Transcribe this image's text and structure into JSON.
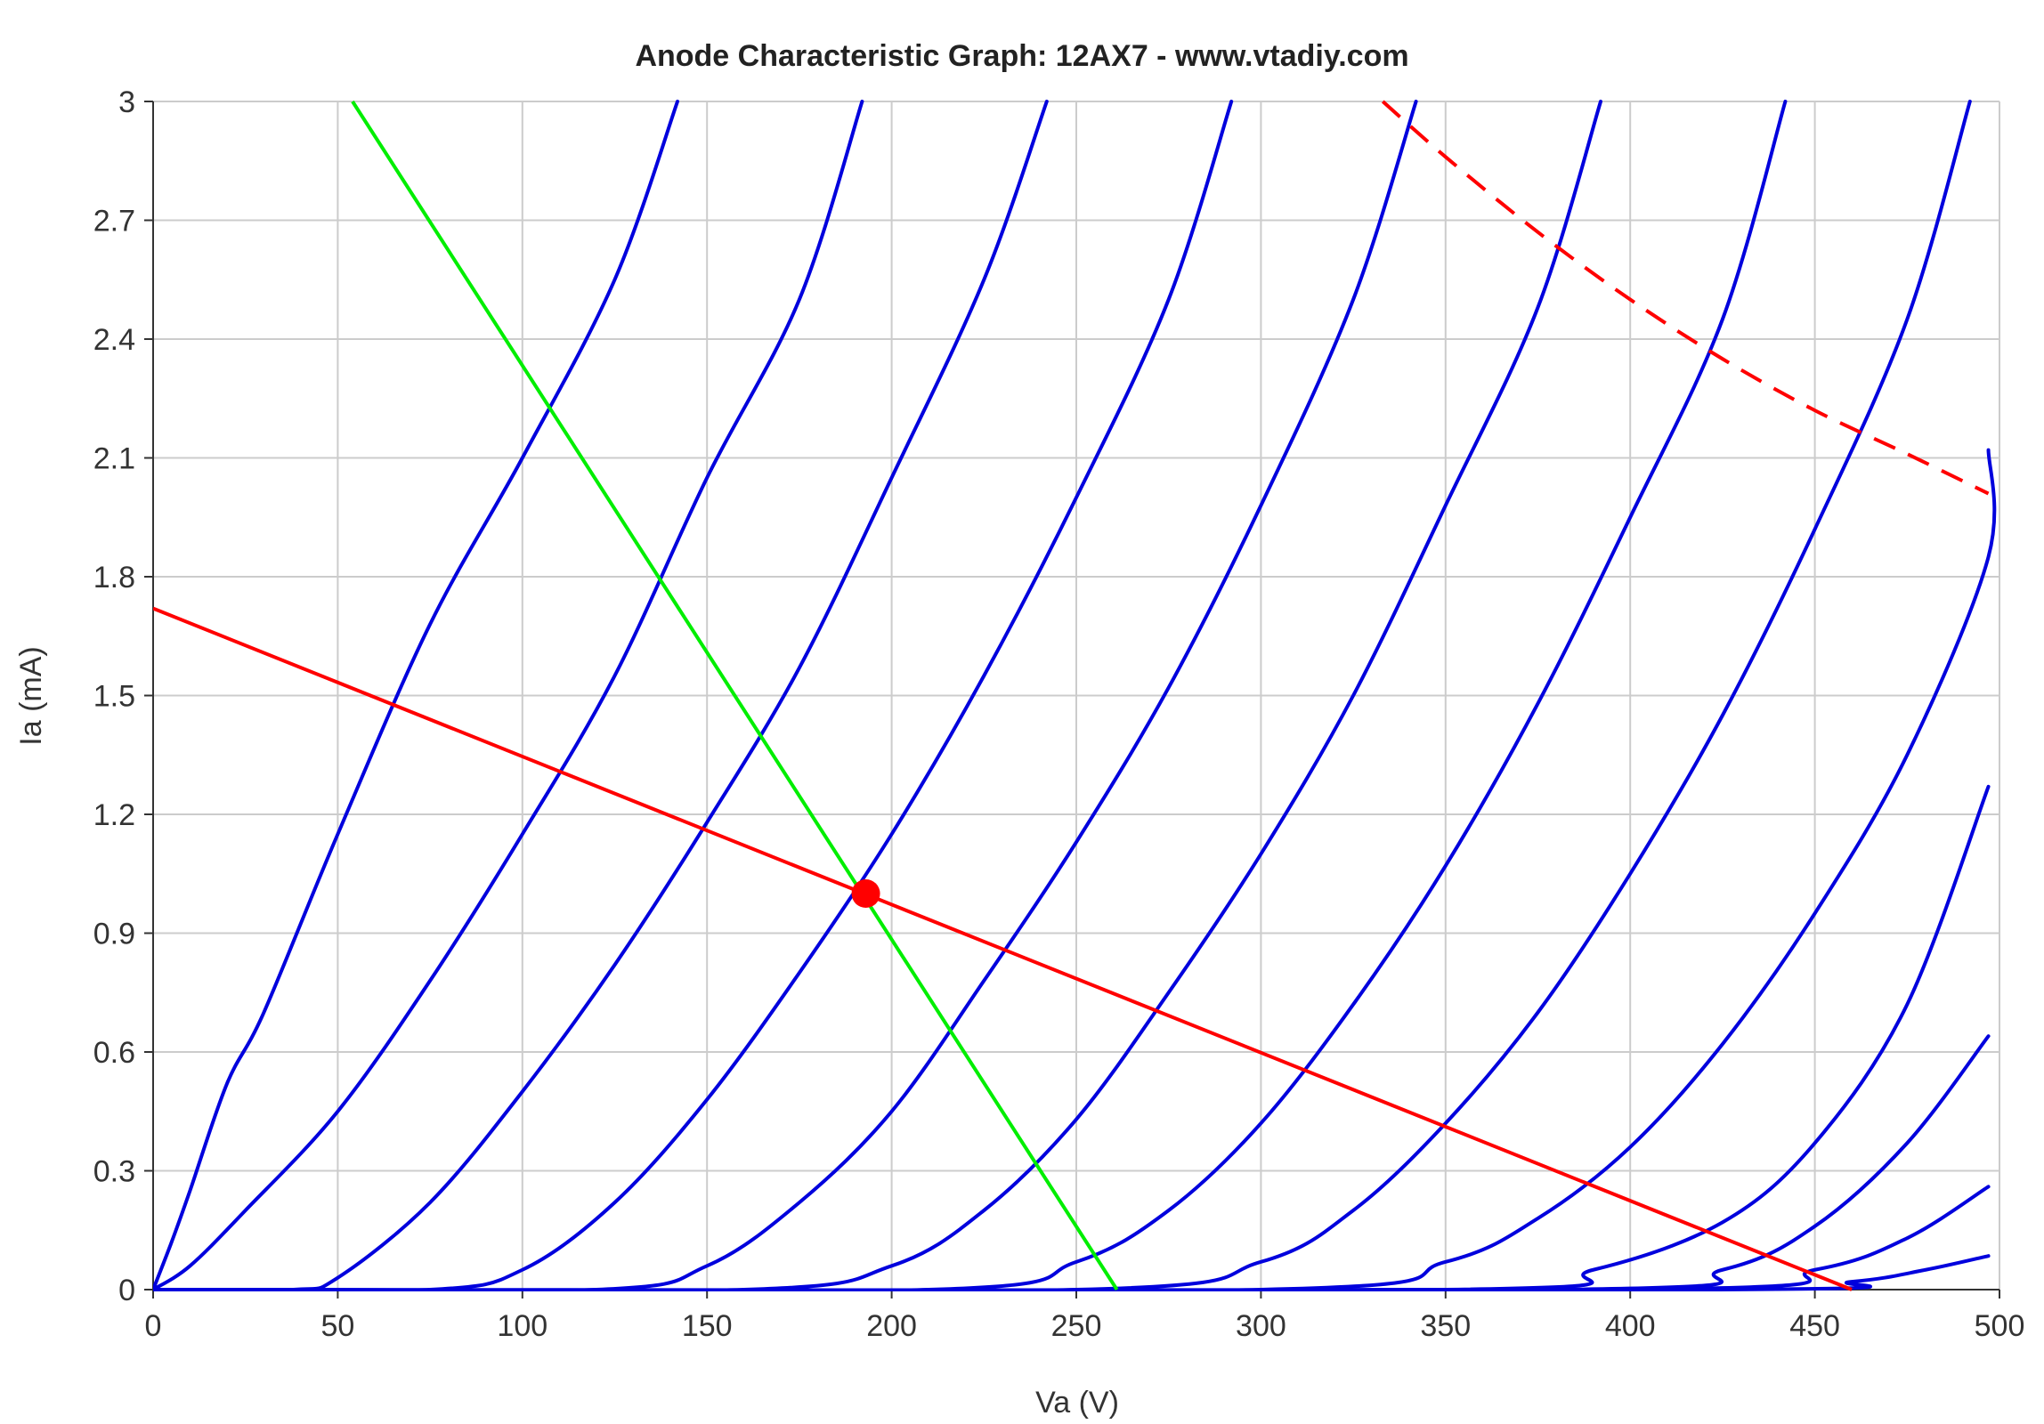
{
  "chart_data": {
    "type": "line",
    "title": "Anode Characteristic Graph: 12AX7 - www.vtadiy.com",
    "xlabel": "Va (V)",
    "ylabel": "Ia (mA)",
    "xlim": [
      0,
      500
    ],
    "ylim": [
      0,
      3
    ],
    "x_ticks": [
      "0",
      "50",
      "100",
      "150",
      "200",
      "250",
      "300",
      "350",
      "400",
      "450",
      "500"
    ],
    "y_ticks": [
      "0",
      "0.3",
      "0.6",
      "0.9",
      "1.2",
      "1.5",
      "1.8",
      "2.1",
      "2.4",
      "2.7",
      "3"
    ],
    "grid": true,
    "colors": {
      "curves": "#0000dd",
      "load_line": "#ff0000",
      "max_dissipation": "#ff0000",
      "cathode_load_line": "#00ee00",
      "operating_point": "#ff0000",
      "grid": "#cccccc",
      "axis": "#333333"
    },
    "series": [
      {
        "points": [
          [
            0,
            0
          ],
          [
            5,
            0.12
          ],
          [
            10,
            0.25
          ],
          [
            20,
            0.52
          ],
          [
            30,
            0.7
          ],
          [
            50,
            1.15
          ],
          [
            75,
            1.68
          ],
          [
            100,
            2.1
          ],
          [
            125,
            2.55
          ],
          [
            142,
            3.0
          ]
        ]
      },
      {
        "points": [
          [
            0,
            0
          ],
          [
            10,
            0.06
          ],
          [
            25,
            0.2
          ],
          [
            50,
            0.45
          ],
          [
            75,
            0.78
          ],
          [
            100,
            1.15
          ],
          [
            125,
            1.55
          ],
          [
            150,
            2.05
          ],
          [
            175,
            2.5
          ],
          [
            192,
            3.0
          ]
        ]
      },
      {
        "points": [
          [
            0,
            0
          ],
          [
            38,
            0.0
          ],
          [
            50,
            0.03
          ],
          [
            75,
            0.22
          ],
          [
            100,
            0.5
          ],
          [
            125,
            0.82
          ],
          [
            150,
            1.18
          ],
          [
            175,
            1.57
          ],
          [
            200,
            2.05
          ],
          [
            225,
            2.55
          ],
          [
            242,
            3.0
          ]
        ]
      },
      {
        "points": [
          [
            0,
            0
          ],
          [
            75,
            0.0
          ],
          [
            100,
            0.05
          ],
          [
            125,
            0.22
          ],
          [
            150,
            0.48
          ],
          [
            175,
            0.8
          ],
          [
            200,
            1.15
          ],
          [
            225,
            1.55
          ],
          [
            250,
            2.0
          ],
          [
            275,
            2.5
          ],
          [
            292,
            3.0
          ]
        ]
      },
      {
        "points": [
          [
            0,
            0
          ],
          [
            120,
            0.0
          ],
          [
            150,
            0.06
          ],
          [
            175,
            0.22
          ],
          [
            200,
            0.45
          ],
          [
            225,
            0.78
          ],
          [
            250,
            1.13
          ],
          [
            275,
            1.52
          ],
          [
            300,
            1.98
          ],
          [
            325,
            2.5
          ],
          [
            342,
            3.0
          ]
        ]
      },
      {
        "points": [
          [
            0,
            0
          ],
          [
            160,
            0.0
          ],
          [
            200,
            0.06
          ],
          [
            225,
            0.2
          ],
          [
            250,
            0.43
          ],
          [
            275,
            0.75
          ],
          [
            300,
            1.1
          ],
          [
            325,
            1.5
          ],
          [
            350,
            1.98
          ],
          [
            375,
            2.48
          ],
          [
            392,
            3.0
          ]
        ]
      },
      {
        "points": [
          [
            0,
            0
          ],
          [
            210,
            0.0
          ],
          [
            250,
            0.07
          ],
          [
            275,
            0.2
          ],
          [
            300,
            0.42
          ],
          [
            325,
            0.72
          ],
          [
            350,
            1.07
          ],
          [
            375,
            1.48
          ],
          [
            400,
            1.95
          ],
          [
            425,
            2.45
          ],
          [
            442,
            3.0
          ]
        ]
      },
      {
        "points": [
          [
            0,
            0
          ],
          [
            250,
            0.0
          ],
          [
            300,
            0.07
          ],
          [
            325,
            0.2
          ],
          [
            350,
            0.42
          ],
          [
            375,
            0.7
          ],
          [
            400,
            1.05
          ],
          [
            425,
            1.45
          ],
          [
            450,
            1.92
          ],
          [
            475,
            2.45
          ],
          [
            492,
            3.0
          ]
        ]
      },
      {
        "points": [
          [
            0,
            0
          ],
          [
            300,
            0.0
          ],
          [
            350,
            0.07
          ],
          [
            375,
            0.18
          ],
          [
            400,
            0.36
          ],
          [
            425,
            0.62
          ],
          [
            450,
            0.95
          ],
          [
            475,
            1.35
          ],
          [
            497,
            1.85
          ],
          [
            497,
            2.12
          ]
        ]
      },
      {
        "points": [
          [
            0,
            0
          ],
          [
            350,
            0.0
          ],
          [
            390,
            0.05
          ],
          [
            425,
            0.17
          ],
          [
            450,
            0.37
          ],
          [
            475,
            0.72
          ],
          [
            497,
            1.27
          ]
        ]
      },
      {
        "points": [
          [
            0,
            0
          ],
          [
            380,
            0.0
          ],
          [
            425,
            0.05
          ],
          [
            450,
            0.16
          ],
          [
            475,
            0.37
          ],
          [
            497,
            0.64
          ]
        ]
      },
      {
        "points": [
          [
            0,
            0
          ],
          [
            400,
            0.0
          ],
          [
            450,
            0.05
          ],
          [
            475,
            0.13
          ],
          [
            497,
            0.26
          ]
        ]
      },
      {
        "points": [
          [
            0,
            0
          ],
          [
            420,
            0.0
          ],
          [
            460,
            0.02
          ],
          [
            480,
            0.05
          ],
          [
            497,
            0.085
          ]
        ]
      }
    ],
    "load_line": {
      "points": [
        [
          0,
          1.72
        ],
        [
          460,
          0.0
        ]
      ]
    },
    "max_dissipation_curve": {
      "points": [
        [
          333,
          3.0
        ],
        [
          350,
          2.86
        ],
        [
          375,
          2.67
        ],
        [
          400,
          2.5
        ],
        [
          425,
          2.35
        ],
        [
          450,
          2.22
        ],
        [
          475,
          2.11
        ],
        [
          497,
          2.01
        ]
      ]
    },
    "cathode_load_line": {
      "points": [
        [
          54,
          3.0
        ],
        [
          261,
          0.0
        ]
      ]
    },
    "operating_point": {
      "x": 193,
      "y": 1.0
    }
  }
}
